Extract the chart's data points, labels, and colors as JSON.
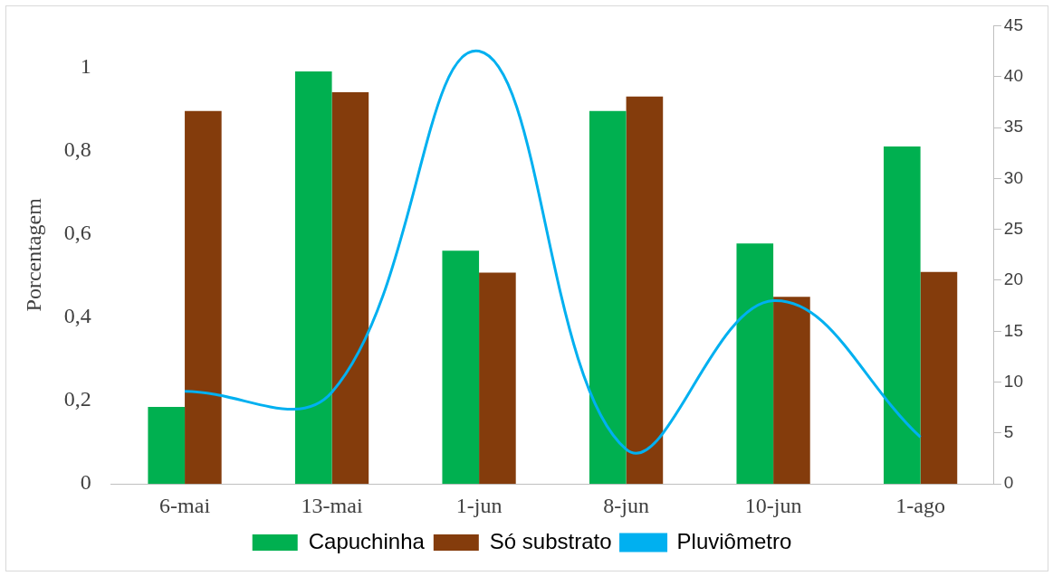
{
  "chart_data": {
    "type": "bar",
    "ylabel": "Porcentagem",
    "categories": [
      "6-mai",
      "13-mai",
      "1-jun",
      "8-jun",
      "10-jun",
      "1-ago"
    ],
    "series": [
      {
        "name": "Capuchinha",
        "color": "#00b050",
        "values": [
          0.185,
          0.99,
          0.56,
          0.895,
          0.577,
          0.81
        ]
      },
      {
        "name": "Só substrato",
        "color": "#843c0c",
        "values": [
          0.895,
          0.94,
          0.507,
          0.93,
          0.449,
          0.509
        ]
      },
      {
        "name": "Pluviômetro",
        "type": "line",
        "axis": "y2",
        "color": "#00b0f0",
        "values": [
          9.1,
          9,
          42.5,
          3.4,
          18,
          4.6
        ]
      }
    ],
    "ylim": [
      0,
      1.1
    ],
    "yticks": [
      0,
      {
        "value": 0.2,
        "label": "0,2"
      },
      {
        "value": 0.4,
        "label": "0,4"
      },
      {
        "value": 0.6,
        "label": "0,6"
      },
      {
        "value": 0.8,
        "label": "0,8"
      },
      1
    ],
    "y2lim": [
      0,
      45
    ],
    "y2ticks": [
      0,
      5,
      10,
      15,
      20,
      25,
      30,
      35,
      40,
      45
    ],
    "grid": false,
    "legend": "bottom",
    "marker": "none",
    "line_style": "solid"
  }
}
